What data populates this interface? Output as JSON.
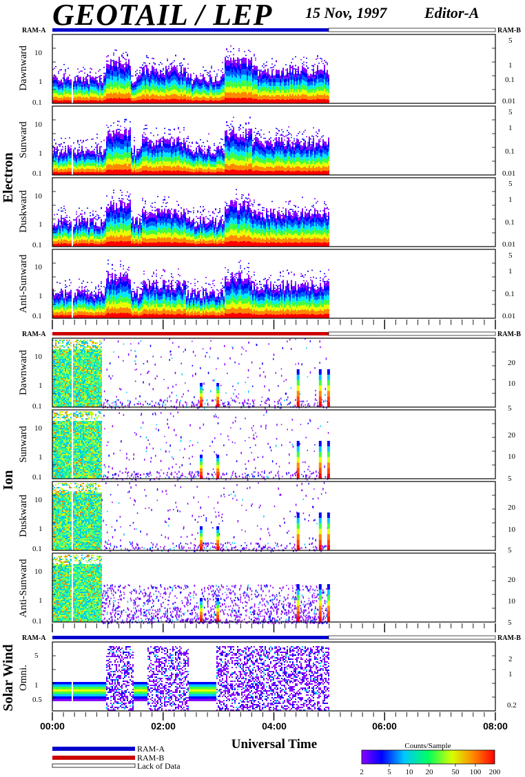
{
  "header": {
    "title": "GEOTAIL / LEP",
    "date": "15 Nov, 1997",
    "editor": "Editor-A"
  },
  "ram_labels": {
    "ram_a": "RAM-A",
    "ram_b": "RAM-B"
  },
  "groups": [
    {
      "label": "Electron",
      "panels": [
        "Dawnward",
        "Sunward",
        "Duskward",
        "Anti-Sunward"
      ]
    },
    {
      "label": "Ion",
      "panels": [
        "Dawnward",
        "Sunward",
        "Duskward",
        "Anti-Sunward"
      ]
    },
    {
      "label": "Solar Wind",
      "panels": [
        "Omni."
      ]
    }
  ],
  "axes": {
    "electron_left_ticks": [
      "10",
      "1",
      "0.1"
    ],
    "electron_right_ticks": [
      "5",
      "1",
      "0.1",
      "0.01"
    ],
    "ion_left_ticks": [
      "10",
      "1",
      "0.1"
    ],
    "ion_right_ticks": [
      "20",
      "10",
      "5"
    ],
    "sw_left_ticks": [
      "5",
      "1",
      "0.5"
    ],
    "sw_right_ticks": [
      "2",
      "1",
      "0.2"
    ],
    "x_ticks": [
      "00:00",
      "02:00",
      "04:00",
      "06:00",
      "08:00"
    ],
    "x_label": "Universal Time"
  },
  "legend": {
    "ram_a": "RAM-A",
    "ram_b": "RAM-B",
    "lack": "Lack of Data",
    "ram_a_color": "#0000cc",
    "ram_b_color": "#cc0000"
  },
  "colorbar": {
    "title": "Counts/Sample",
    "ticks": [
      "2",
      "5",
      "10",
      "20",
      "50",
      "100",
      "200"
    ]
  },
  "chart_data": {
    "type": "heatmap",
    "x_range_hours": [
      0,
      8
    ],
    "data_end_hours": 5.0,
    "data_gaps_hours": [
      [
        0.33,
        0.36
      ],
      [
        0.4,
        0.42
      ]
    ],
    "mode_bars": {
      "electron": "RAM-A",
      "ion": "RAM-B",
      "solar_wind": "RAM-A"
    },
    "electron_bands_hours": [
      {
        "start": 0.0,
        "end": 0.95,
        "level": "low"
      },
      {
        "start": 0.95,
        "end": 1.4,
        "level": "high"
      },
      {
        "start": 1.4,
        "end": 1.6,
        "level": "low"
      },
      {
        "start": 1.6,
        "end": 2.4,
        "level": "medium"
      },
      {
        "start": 2.4,
        "end": 3.1,
        "level": "low"
      },
      {
        "start": 3.1,
        "end": 3.6,
        "level": "high"
      },
      {
        "start": 3.6,
        "end": 5.0,
        "level": "medium"
      }
    ],
    "ion_activity": [
      {
        "start": 0.0,
        "end": 0.88,
        "intensity": "high"
      },
      {
        "start": 0.88,
        "end": 5.0,
        "intensity": "sparse"
      }
    ],
    "ion_spikes_hours": [
      2.7,
      3.0,
      4.45,
      4.85,
      5.0
    ],
    "colorbar_range_counts": [
      2,
      200
    ]
  }
}
